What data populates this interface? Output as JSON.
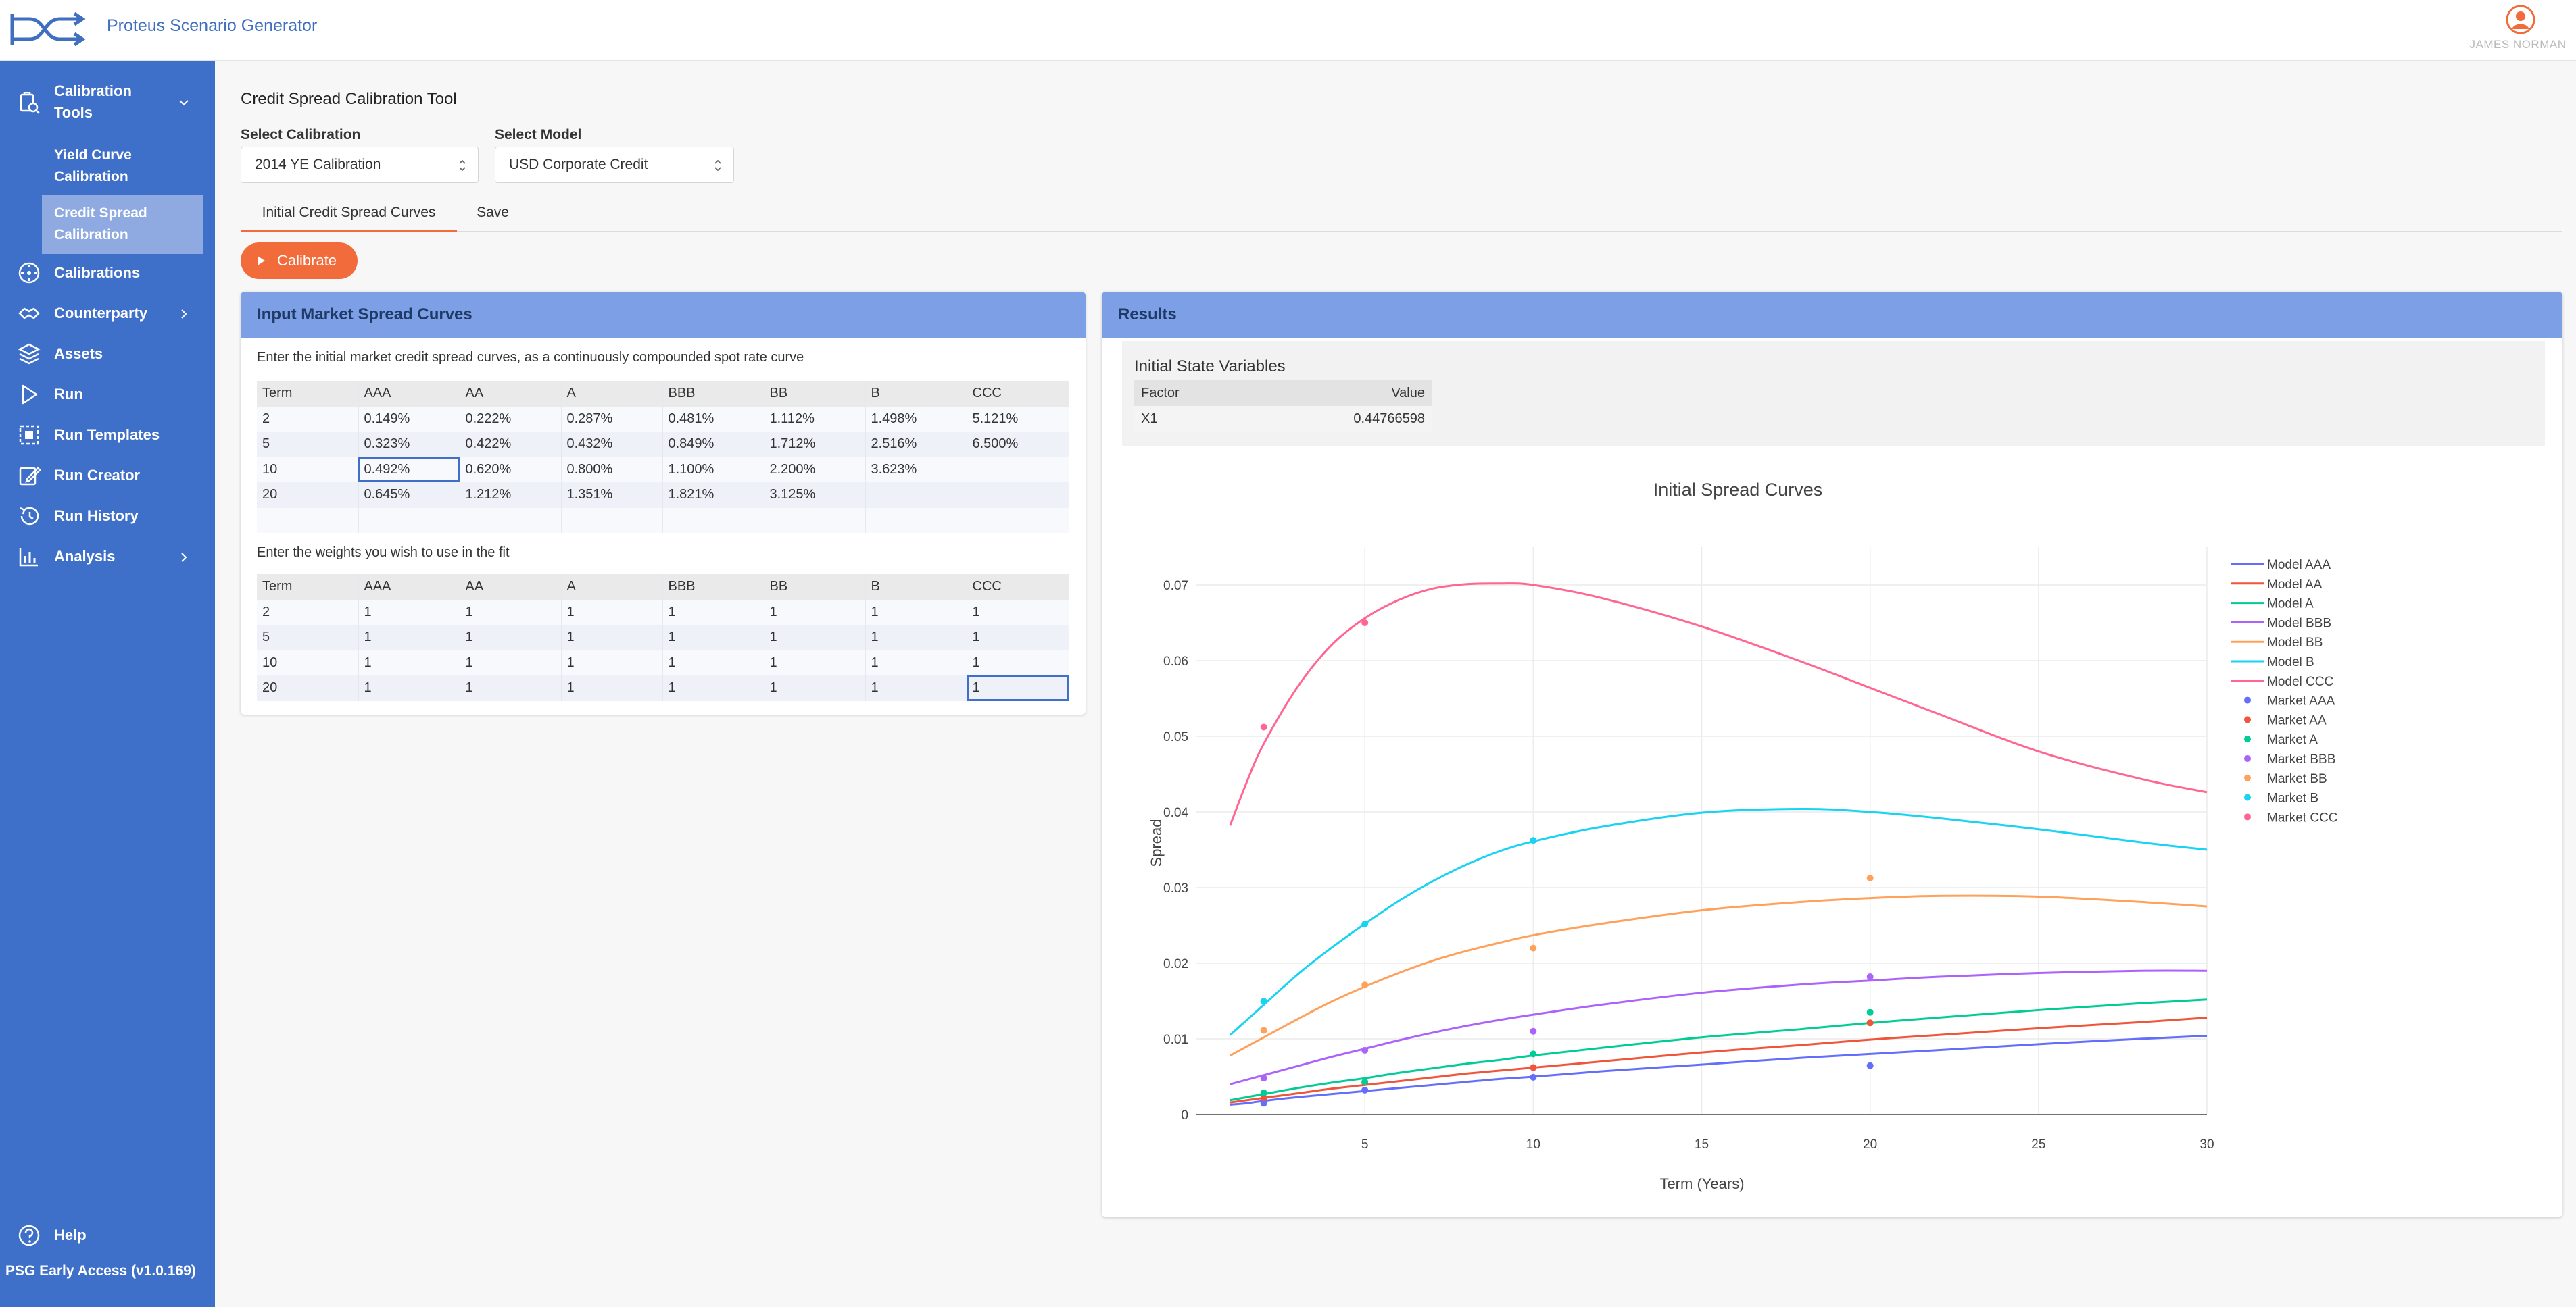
{
  "header": {
    "app_title": "Proteus Scenario Generator",
    "user_name": "JAMES NORMAN",
    "logo_icon": "proteus-logo-icon",
    "user_icon": "user-avatar-icon"
  },
  "sidebar": {
    "items": [
      {
        "label": "Calibration Tools",
        "icon": "calibration-tools-icon",
        "expandable": true
      },
      {
        "label": "Calibrations",
        "icon": "calibrations-icon"
      },
      {
        "label": "Counterparty",
        "icon": "counterparty-icon",
        "expandable": true
      },
      {
        "label": "Assets",
        "icon": "assets-icon"
      },
      {
        "label": "Run",
        "icon": "run-icon"
      },
      {
        "label": "Run Templates",
        "icon": "run-templates-icon"
      },
      {
        "label": "Run Creator",
        "icon": "run-creator-icon"
      },
      {
        "label": "Run History",
        "icon": "run-history-icon"
      },
      {
        "label": "Analysis",
        "icon": "analysis-icon",
        "expandable": true
      }
    ],
    "calibration_tools_label_1": "Calibration",
    "calibration_tools_label_2": "Tools",
    "sub_items": [
      {
        "line1": "Yield Curve",
        "line2": "Calibration"
      },
      {
        "line1": "Credit Spread",
        "line2": "Calibration"
      }
    ],
    "help_label": "Help",
    "version": "PSG Early Access (v1.0.169)",
    "accent_active": "#8eaae0",
    "background": "#3f70c9"
  },
  "main": {
    "page_title": "Credit Spread Calibration Tool",
    "select_calibration_label": "Select Calibration",
    "select_calibration_value": "2014 YE Calibration",
    "select_model_label": "Select Model",
    "select_model_value": "USD Corporate Credit",
    "tabs": [
      {
        "label": "Initial Credit Spread Curves",
        "active": true
      },
      {
        "label": "Save",
        "active": false
      }
    ],
    "calibrate_label": "Calibrate",
    "accent_color": "#f26b3a"
  },
  "input_panel": {
    "title": "Input Market Spread Curves",
    "spread_instruction": "Enter the initial market credit spread curves, as a continuously compounded spot rate curve",
    "weights_instruction": "Enter the weights you wish to use in the fit",
    "columns": [
      "Term",
      "AAA",
      "AA",
      "A",
      "BBB",
      "BB",
      "B",
      "CCC"
    ],
    "spread_rows": [
      [
        "2",
        "0.149%",
        "0.222%",
        "0.287%",
        "0.481%",
        "1.112%",
        "1.498%",
        "5.121%"
      ],
      [
        "5",
        "0.323%",
        "0.422%",
        "0.432%",
        "0.849%",
        "1.712%",
        "2.516%",
        "6.500%"
      ],
      [
        "10",
        "0.492%",
        "0.620%",
        "0.800%",
        "1.100%",
        "2.200%",
        "3.623%",
        ""
      ],
      [
        "20",
        "0.645%",
        "1.212%",
        "1.351%",
        "1.821%",
        "3.125%",
        "",
        ""
      ],
      [
        "",
        "",
        "",
        "",
        "",
        "",
        "",
        ""
      ]
    ],
    "weight_rows": [
      [
        "2",
        "1",
        "1",
        "1",
        "1",
        "1",
        "1",
        "1"
      ],
      [
        "5",
        "1",
        "1",
        "1",
        "1",
        "1",
        "1",
        "1"
      ],
      [
        "10",
        "1",
        "1",
        "1",
        "1",
        "1",
        "1",
        "1"
      ],
      [
        "20",
        "1",
        "1",
        "1",
        "1",
        "1",
        "1",
        "1"
      ]
    ]
  },
  "results_panel": {
    "title": "Results",
    "state_title": "Initial State Variables",
    "state_columns": [
      "Factor",
      "Value"
    ],
    "state_rows": [
      [
        "X1",
        "0.44766598"
      ]
    ]
  },
  "chart_data": {
    "type": "line",
    "title": "Initial Spread Curves",
    "xlabel": "Term (Years)",
    "ylabel": "Spread",
    "xlim": [
      0,
      30
    ],
    "ylim": [
      0,
      0.075
    ],
    "x_ticks": [
      5,
      10,
      15,
      20,
      25,
      30
    ],
    "y_ticks": [
      0,
      0.01,
      0.02,
      0.03,
      0.04,
      0.05,
      0.06,
      0.07
    ],
    "y_tick_labels": [
      "0",
      "0.01",
      "0.02",
      "0.03",
      "0.04",
      "0.05",
      "0.06",
      "0.07"
    ],
    "grid": true,
    "legend_position": "right",
    "model_x": [
      1,
      1.5,
      2,
      3,
      4,
      5,
      6,
      7,
      8,
      9,
      10,
      12,
      15,
      18,
      20,
      22,
      25,
      28,
      30
    ],
    "series": [
      {
        "name": "Model AAA",
        "color": "#636efa",
        "kind": "line",
        "y": [
          0.0013,
          0.0015,
          0.0018,
          0.0023,
          0.0027,
          0.0031,
          0.0035,
          0.0039,
          0.0043,
          0.0047,
          0.005,
          0.0057,
          0.0066,
          0.0075,
          0.008,
          0.0085,
          0.0093,
          0.01,
          0.0104
        ]
      },
      {
        "name": "Model AA",
        "color": "#ef553b",
        "kind": "line",
        "y": [
          0.0016,
          0.0019,
          0.0022,
          0.0028,
          0.0034,
          0.0039,
          0.0044,
          0.0049,
          0.0054,
          0.0058,
          0.0062,
          0.007,
          0.0082,
          0.0092,
          0.0099,
          0.0105,
          0.0114,
          0.0122,
          0.0128
        ]
      },
      {
        "name": "Model A",
        "color": "#00cc96",
        "kind": "line",
        "y": [
          0.0019,
          0.0023,
          0.0027,
          0.0035,
          0.0042,
          0.0048,
          0.0055,
          0.0061,
          0.0067,
          0.0072,
          0.0078,
          0.0088,
          0.0102,
          0.0113,
          0.0121,
          0.0128,
          0.0138,
          0.0147,
          0.0152
        ]
      },
      {
        "name": "Model BBB",
        "color": "#ab63fa",
        "kind": "line",
        "y": [
          0.004,
          0.0046,
          0.0052,
          0.0064,
          0.0076,
          0.0087,
          0.0098,
          0.0108,
          0.0117,
          0.0125,
          0.0132,
          0.0145,
          0.0161,
          0.0172,
          0.0177,
          0.0182,
          0.0187,
          0.019,
          0.019
        ]
      },
      {
        "name": "Model BB",
        "color": "#ffa15a",
        "kind": "line",
        "y": [
          0.0078,
          0.009,
          0.0102,
          0.0126,
          0.0149,
          0.0169,
          0.0187,
          0.0203,
          0.0216,
          0.0227,
          0.0237,
          0.0252,
          0.027,
          0.0281,
          0.0286,
          0.0289,
          0.0288,
          0.0281,
          0.0275
        ]
      },
      {
        "name": "Model B",
        "color": "#19d3f3",
        "kind": "line",
        "y": [
          0.0105,
          0.0125,
          0.0145,
          0.0185,
          0.022,
          0.0252,
          0.0282,
          0.0308,
          0.033,
          0.0348,
          0.0361,
          0.038,
          0.0399,
          0.0404,
          0.04,
          0.0392,
          0.0377,
          0.036,
          0.035
        ]
      },
      {
        "name": "Model CCC",
        "color": "#ff6692",
        "kind": "line",
        "y": [
          0.0382,
          0.044,
          0.049,
          0.0565,
          0.062,
          0.0656,
          0.068,
          0.0695,
          0.0701,
          0.0702,
          0.07,
          0.0683,
          0.0645,
          0.0598,
          0.0564,
          0.053,
          0.048,
          0.0444,
          0.0426
        ]
      },
      {
        "name": "Market AAA",
        "color": "#636efa",
        "kind": "marker",
        "x": [
          2,
          5,
          10,
          20
        ],
        "y": [
          0.00149,
          0.00323,
          0.00492,
          0.00645
        ]
      },
      {
        "name": "Market AA",
        "color": "#ef553b",
        "kind": "marker",
        "x": [
          2,
          5,
          10,
          20
        ],
        "y": [
          0.00222,
          0.00422,
          0.0062,
          0.01212
        ]
      },
      {
        "name": "Market A",
        "color": "#00cc96",
        "kind": "marker",
        "x": [
          2,
          5,
          10,
          20
        ],
        "y": [
          0.00287,
          0.00432,
          0.008,
          0.01351
        ]
      },
      {
        "name": "Market BBB",
        "color": "#ab63fa",
        "kind": "marker",
        "x": [
          2,
          5,
          10,
          20
        ],
        "y": [
          0.00481,
          0.00849,
          0.011,
          0.01821
        ]
      },
      {
        "name": "Market BB",
        "color": "#ffa15a",
        "kind": "marker",
        "x": [
          2,
          5,
          10,
          20
        ],
        "y": [
          0.01112,
          0.01712,
          0.022,
          0.03125
        ]
      },
      {
        "name": "Market B",
        "color": "#19d3f3",
        "kind": "marker",
        "x": [
          2,
          5,
          10
        ],
        "y": [
          0.01498,
          0.02516,
          0.03623
        ]
      },
      {
        "name": "Market CCC",
        "color": "#ff6692",
        "kind": "marker",
        "x": [
          2,
          5
        ],
        "y": [
          0.05121,
          0.065
        ]
      }
    ]
  }
}
